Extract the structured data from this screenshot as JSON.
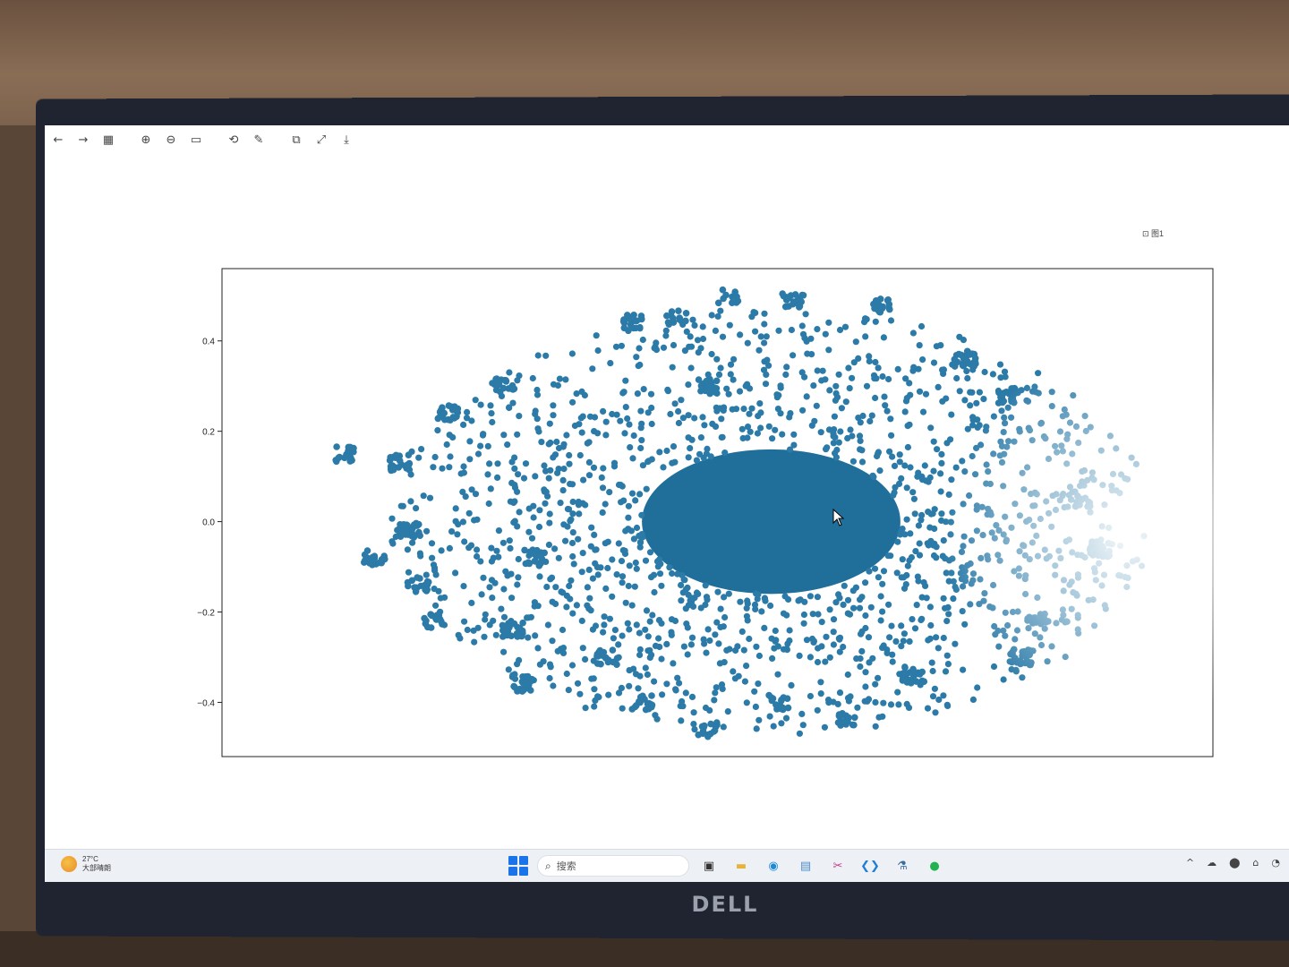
{
  "toolbar": {
    "buttons": [
      {
        "name": "back-icon",
        "glyph": "←"
      },
      {
        "name": "forward-icon",
        "glyph": "→"
      },
      {
        "name": "thumbnails-icon",
        "glyph": "▦"
      },
      {
        "name": "zoom-in-icon",
        "glyph": "⊕"
      },
      {
        "name": "zoom-out-icon",
        "glyph": "⊖"
      },
      {
        "name": "fit-icon",
        "glyph": "▭"
      },
      {
        "name": "rotate-icon",
        "glyph": "⟲"
      },
      {
        "name": "edit-icon",
        "glyph": "✎"
      },
      {
        "name": "copy-icon",
        "glyph": "⧉"
      },
      {
        "name": "fullscreen-icon",
        "glyph": "⤢"
      },
      {
        "name": "save-icon",
        "glyph": "⤓"
      }
    ]
  },
  "colors": {
    "marker": "#2b7aa8",
    "marker_dense": "#1f6f9a",
    "axis": "#222222"
  },
  "chart_data": {
    "type": "scatter",
    "title": "",
    "xlabel": "",
    "ylabel": "",
    "yticks": [
      "0.4",
      "0.2",
      "0.0",
      "−0.2",
      "−0.4"
    ],
    "ytick_values": [
      0.4,
      0.2,
      0.0,
      -0.2,
      -0.4
    ],
    "ylim": [
      -0.52,
      0.56
    ],
    "xticks": [],
    "grid": false,
    "series": [
      {
        "dense_core": {
          "center": [
            0.0,
            0.0
          ],
          "radius_x": 0.3,
          "radius_y": 0.16
        },
        "halo": {
          "count": 1500,
          "max_radius_x": 0.9,
          "max_radius_y": 0.5
        },
        "clusters": [
          {
            "x": -0.99,
            "y": 0.15
          },
          {
            "x": -0.86,
            "y": 0.13
          },
          {
            "x": -0.75,
            "y": 0.24
          },
          {
            "x": -0.62,
            "y": 0.3
          },
          {
            "x": -0.92,
            "y": -0.08
          },
          {
            "x": -0.84,
            "y": -0.02
          },
          {
            "x": -0.82,
            "y": -0.14
          },
          {
            "x": -0.78,
            "y": -0.22
          },
          {
            "x": -0.6,
            "y": -0.24
          },
          {
            "x": -0.58,
            "y": -0.36
          },
          {
            "x": -0.55,
            "y": -0.08
          },
          {
            "x": -0.32,
            "y": 0.44
          },
          {
            "x": -0.22,
            "y": 0.45
          },
          {
            "x": -0.1,
            "y": 0.5
          },
          {
            "x": 0.05,
            "y": 0.49
          },
          {
            "x": 0.25,
            "y": 0.48
          },
          {
            "x": -0.15,
            "y": 0.3
          },
          {
            "x": -0.38,
            "y": -0.3
          },
          {
            "x": -0.3,
            "y": -0.4
          },
          {
            "x": -0.15,
            "y": -0.46
          },
          {
            "x": 0.02,
            "y": -0.4
          },
          {
            "x": 0.18,
            "y": -0.44
          },
          {
            "x": 0.33,
            "y": -0.34
          },
          {
            "x": 0.45,
            "y": 0.36
          },
          {
            "x": 0.55,
            "y": 0.28
          },
          {
            "x": 0.62,
            "y": -0.22
          },
          {
            "x": 0.58,
            "y": -0.3
          },
          {
            "x": 0.72,
            "y": 0.05
          },
          {
            "x": 0.76,
            "y": -0.06
          }
        ]
      }
    ]
  },
  "status": {
    "coord_readout": "⊡ 图1"
  },
  "taskbar": {
    "weather_temp": "27°C",
    "weather_desc": "大部晴朗",
    "search_placeholder": "搜索",
    "apps": [
      {
        "name": "task-view-icon",
        "glyph": "▣",
        "color": "#333"
      },
      {
        "name": "file-explorer-icon",
        "glyph": "▬",
        "color": "#e8b339"
      },
      {
        "name": "edge-icon",
        "glyph": "◉",
        "color": "#1c8adb"
      },
      {
        "name": "photos-icon",
        "glyph": "▤",
        "color": "#4a8fd0"
      },
      {
        "name": "snipping-icon",
        "glyph": "✂",
        "color": "#c43b8c"
      },
      {
        "name": "vscode-icon",
        "glyph": "❮❯",
        "color": "#1f7fd6"
      },
      {
        "name": "python-app-icon",
        "glyph": "⚗",
        "color": "#3b6aa0"
      },
      {
        "name": "pycharm-icon",
        "glyph": "●",
        "color": "#21b352"
      }
    ],
    "tray": [
      "^",
      "☁",
      "⬤",
      "⌂",
      "◔"
    ]
  },
  "monitor": {
    "brand": "DELL"
  }
}
